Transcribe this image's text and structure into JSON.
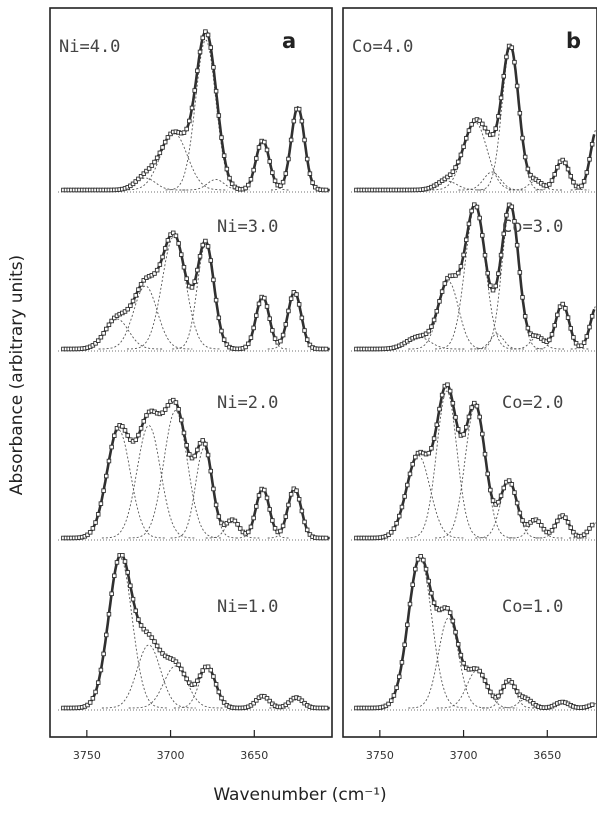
{
  "chart_data": {
    "type": "line",
    "xlabel": "Wavenumber (cm⁻¹)",
    "ylabel": "Absorbance (arbitrary units)",
    "x_ticks": [
      "3750",
      "3700",
      "3650"
    ],
    "xlim": [
      3772,
      3603
    ],
    "x_reversed": true,
    "colors": {
      "data": "#303030",
      "fit": "#555555",
      "frame": "#222222"
    },
    "panels": [
      {
        "letter": "a",
        "xlim": [
          3772,
          3603
        ],
        "spectra": [
          {
            "label": "Ni=4.0",
            "components": [
              {
                "center": 3715,
                "width": 6,
                "height": 0.08
              },
              {
                "center": 3698,
                "width": 8,
                "height": 0.38
              },
              {
                "center": 3679,
                "width": 6,
                "height": 1.0
              },
              {
                "center": 3673,
                "width": 5,
                "height": 0.07
              },
              {
                "center": 3645,
                "width": 4,
                "height": 0.33
              },
              {
                "center": 3624,
                "width": 4,
                "height": 0.55
              }
            ]
          },
          {
            "label": "Ni=3.0",
            "components": [
              {
                "center": 3732,
                "width": 7,
                "height": 0.2
              },
              {
                "center": 3715,
                "width": 7,
                "height": 0.42
              },
              {
                "center": 3698,
                "width": 7,
                "height": 0.75
              },
              {
                "center": 3679,
                "width": 5,
                "height": 0.7
              },
              {
                "center": 3645,
                "width": 4,
                "height": 0.35
              },
              {
                "center": 3626,
                "width": 4,
                "height": 0.38
              }
            ]
          },
          {
            "label": "Ni=2.0",
            "components": [
              {
                "center": 3731,
                "width": 7,
                "height": 0.72
              },
              {
                "center": 3713,
                "width": 7,
                "height": 0.75
              },
              {
                "center": 3697,
                "width": 7,
                "height": 0.85
              },
              {
                "center": 3680,
                "width": 5,
                "height": 0.6
              },
              {
                "center": 3663,
                "width": 4,
                "height": 0.12
              },
              {
                "center": 3645,
                "width": 4,
                "height": 0.33
              },
              {
                "center": 3626,
                "width": 4,
                "height": 0.33
              }
            ]
          },
          {
            "label": "Ni=1.0",
            "components": [
              {
                "center": 3730,
                "width": 7,
                "height": 1.0
              },
              {
                "center": 3713,
                "width": 7,
                "height": 0.42
              },
              {
                "center": 3697,
                "width": 7,
                "height": 0.28
              },
              {
                "center": 3678,
                "width": 5,
                "height": 0.27
              },
              {
                "center": 3645,
                "width": 4,
                "height": 0.08
              },
              {
                "center": 3625,
                "width": 4,
                "height": 0.07
              }
            ]
          }
        ]
      },
      {
        "letter": "b",
        "xlim": [
          3772,
          3603
        ],
        "spectra": [
          {
            "label": "Co=4.0",
            "components": [
              {
                "center": 3710,
                "width": 6,
                "height": 0.06
              },
              {
                "center": 3693,
                "width": 7,
                "height": 0.45
              },
              {
                "center": 3683,
                "width": 5,
                "height": 0.12
              },
              {
                "center": 3672,
                "width": 5,
                "height": 0.95
              },
              {
                "center": 3657,
                "width": 4,
                "height": 0.06
              },
              {
                "center": 3641,
                "width": 4,
                "height": 0.2
              },
              {
                "center": 3620,
                "width": 4,
                "height": 0.42
              }
            ]
          },
          {
            "label": "Co=3.0",
            "components": [
              {
                "center": 3727,
                "width": 7,
                "height": 0.08
              },
              {
                "center": 3709,
                "width": 6,
                "height": 0.45
              },
              {
                "center": 3693,
                "width": 6,
                "height": 0.95
              },
              {
                "center": 3680,
                "width": 4,
                "height": 0.1
              },
              {
                "center": 3672,
                "width": 5,
                "height": 0.95
              },
              {
                "center": 3656,
                "width": 4,
                "height": 0.08
              },
              {
                "center": 3641,
                "width": 4,
                "height": 0.3
              },
              {
                "center": 3620,
                "width": 4,
                "height": 0.3
              }
            ]
          },
          {
            "label": "Co=2.0",
            "components": [
              {
                "center": 3727,
                "width": 7,
                "height": 0.55
              },
              {
                "center": 3710,
                "width": 6,
                "height": 0.98
              },
              {
                "center": 3693,
                "width": 6,
                "height": 0.88
              },
              {
                "center": 3673,
                "width": 5,
                "height": 0.38
              },
              {
                "center": 3657,
                "width": 4,
                "height": 0.12
              },
              {
                "center": 3641,
                "width": 4,
                "height": 0.15
              },
              {
                "center": 3621,
                "width": 4,
                "height": 0.1
              }
            ]
          },
          {
            "label": "Co=1.0",
            "components": [
              {
                "center": 3726,
                "width": 7,
                "height": 1.0
              },
              {
                "center": 3709,
                "width": 6,
                "height": 0.6
              },
              {
                "center": 3692,
                "width": 6,
                "height": 0.25
              },
              {
                "center": 3673,
                "width": 4,
                "height": 0.18
              },
              {
                "center": 3663,
                "width": 4,
                "height": 0.06
              },
              {
                "center": 3641,
                "width": 4,
                "height": 0.04
              },
              {
                "center": 3620,
                "width": 4,
                "height": 0.03
              }
            ]
          }
        ]
      }
    ]
  }
}
